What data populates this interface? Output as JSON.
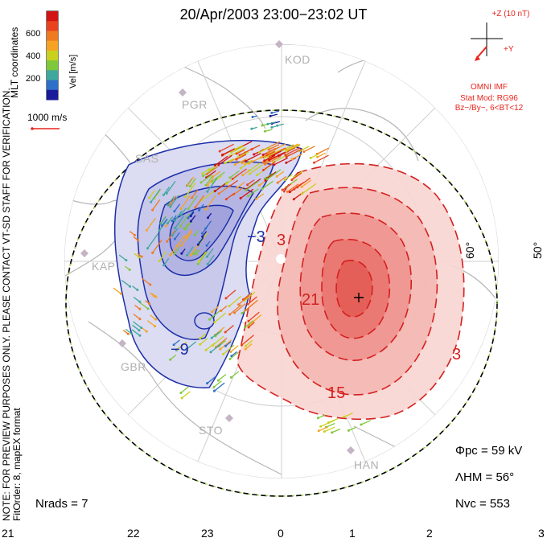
{
  "title": "20/Apr/2003 23:00−23:02 UT",
  "side_notes": {
    "verification": "NOTE: FOR PREVIEW PURPOSES ONLY. PLEASE CONTACT VT-SD STAFF FOR VERIFICATION.",
    "fit_order": "FitOrder: 8, mapEX format"
  },
  "colorbar": {
    "label": "Vel [m/s]",
    "ticks": [
      "600",
      "400",
      "200"
    ],
    "coordinates": "MLT coordinates",
    "colors": [
      "#1a1a9a",
      "#2f6fc8",
      "#3fa89c",
      "#7ec83a",
      "#c8d21e",
      "#f6a323",
      "#f07a20",
      "#e8431e",
      "#d21414"
    ]
  },
  "scale_vector": {
    "label": "1000 m/s",
    "color": "#e8241c"
  },
  "imf": {
    "z_label": "+Z (10 nT)",
    "y_label": "+Y",
    "source": "OMNI IMF",
    "model": "Stat Mod: RG96",
    "condition": "Bz−/By−, 6<BT<12",
    "color": "#e8241c"
  },
  "latitude_labels": [
    "50°",
    "60°"
  ],
  "stations": [
    "KOD",
    "PGR",
    "SAS",
    "KAP",
    "GBR",
    "STO",
    "HAN"
  ],
  "contour_labels": {
    "negative": [
      "−3",
      "−9"
    ],
    "positive": [
      "3",
      "21",
      "15",
      "3"
    ],
    "positive_color": "#d42020",
    "negative_color": "#1c2fa8"
  },
  "parameters": {
    "phi_pc": "Φpc = 59 kV",
    "lambda_hm": "ΛHM = 56°",
    "n_vc": "Nvc = 553",
    "n_rads": "Nrads = 7"
  },
  "mlt_axis": [
    "21",
    "22",
    "23",
    "0",
    "1",
    "2",
    "3"
  ]
}
